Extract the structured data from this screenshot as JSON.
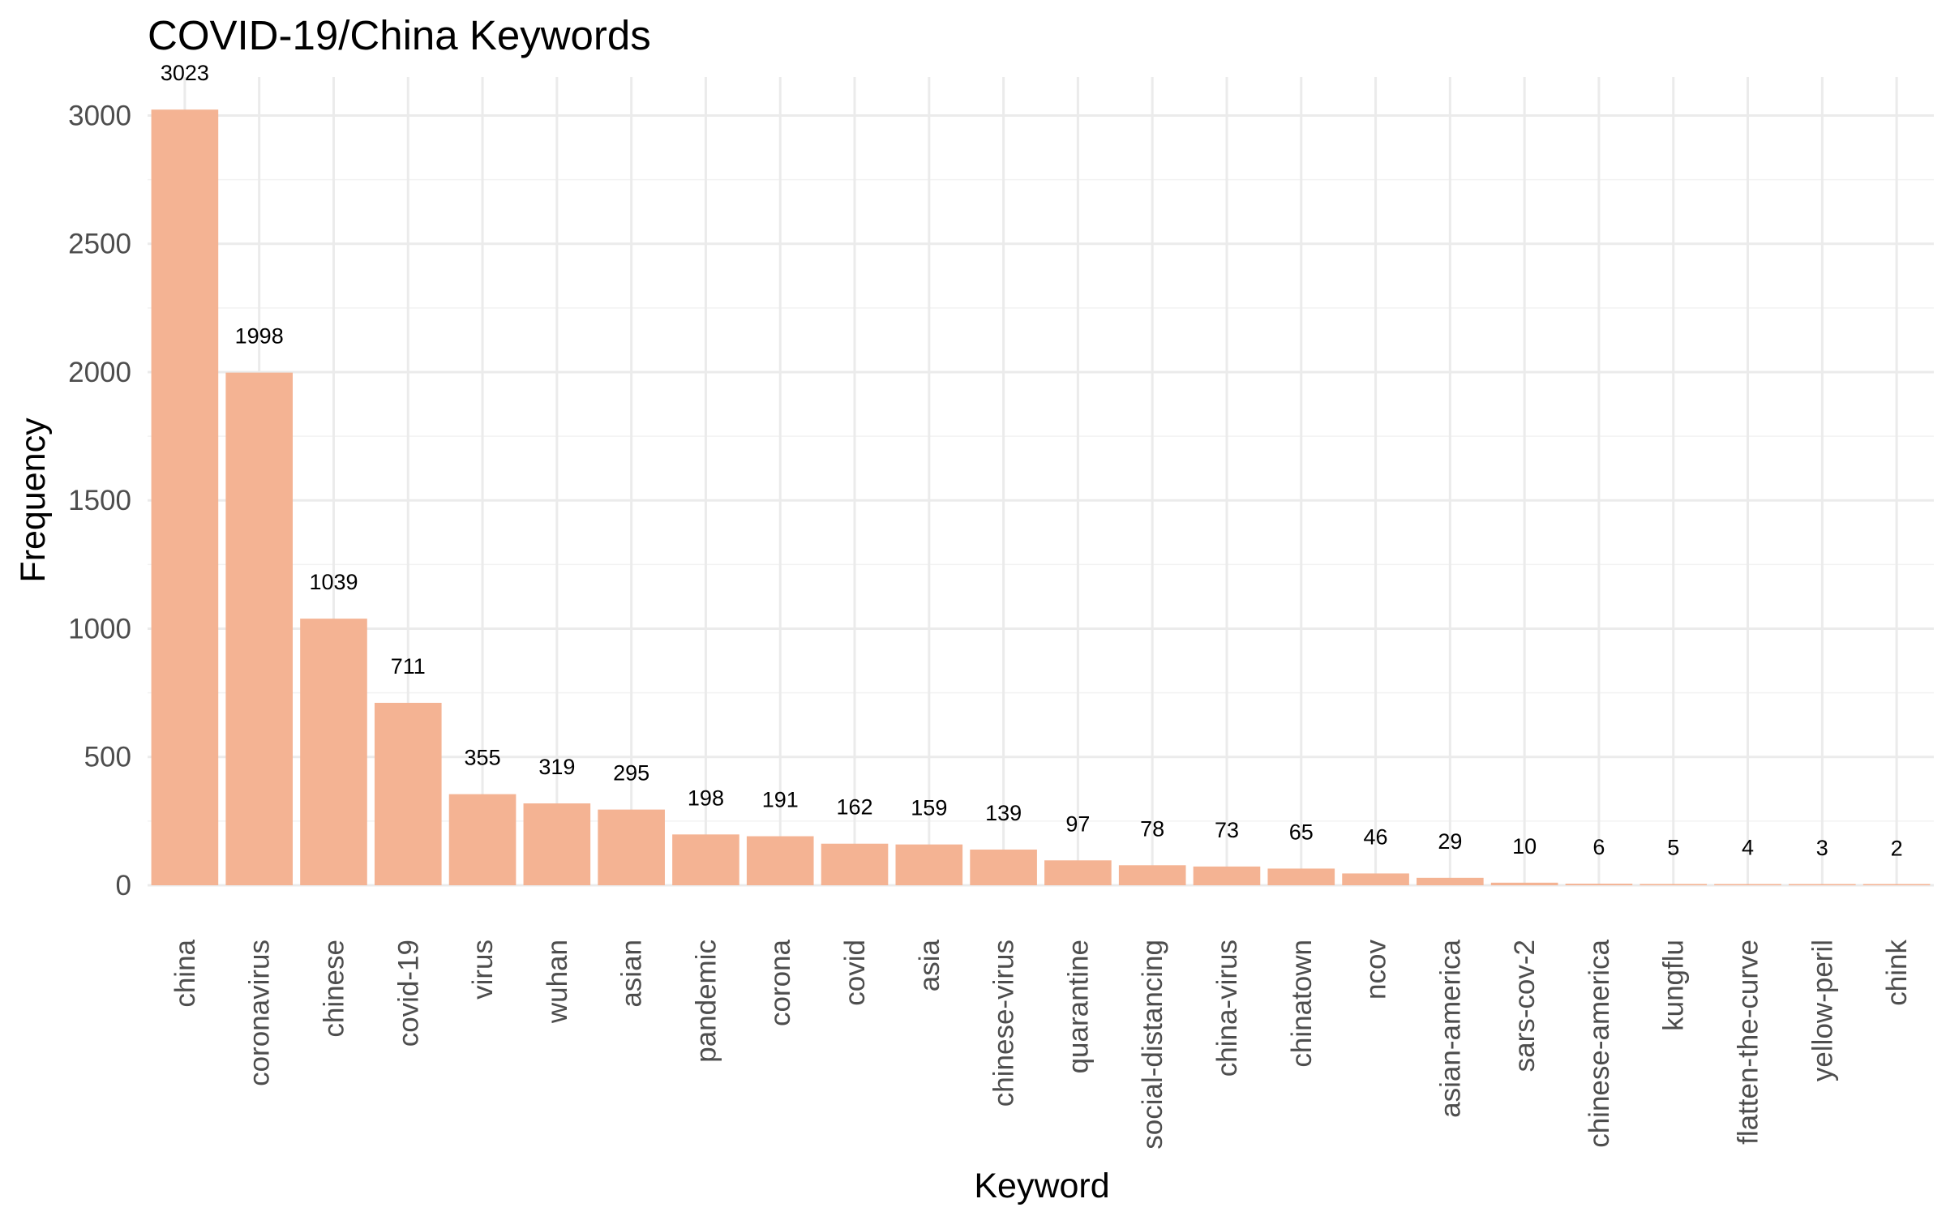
{
  "chart_data": {
    "type": "bar",
    "title": "COVID-19/China Keywords",
    "xlabel": "Keyword",
    "ylabel": "Frequency",
    "ylim": [
      0,
      3150
    ],
    "yticks": [
      0,
      500,
      1000,
      1500,
      2000,
      2500,
      3000
    ],
    "categories": [
      "china",
      "coronavirus",
      "chinese",
      "covid-19",
      "virus",
      "wuhan",
      "asian",
      "pandemic",
      "corona",
      "covid",
      "asia",
      "chinese-virus",
      "quarantine",
      "social-distancing",
      "china-virus",
      "chinatown",
      "ncov",
      "asian-america",
      "sars-cov-2",
      "chinese-america",
      "kungflu",
      "flatten-the-curve",
      "yellow-peril",
      "chink"
    ],
    "values": [
      3023,
      1998,
      1039,
      711,
      355,
      319,
      295,
      198,
      191,
      162,
      159,
      139,
      97,
      78,
      73,
      65,
      46,
      29,
      10,
      6,
      5,
      4,
      3,
      2
    ],
    "data_labels": [
      "3023",
      "1998",
      "1039",
      "711",
      "355",
      "319",
      "295",
      "198",
      "191",
      "162",
      "159",
      "139",
      "97",
      "78",
      "73",
      "65",
      "46",
      "29",
      "10",
      "6",
      "5",
      "4",
      "3",
      "2"
    ],
    "bar_color": "#f4b393",
    "grid": true,
    "legend": "none"
  }
}
